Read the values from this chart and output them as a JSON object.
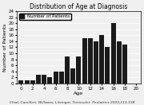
{
  "title": "Distribution of Age at Diagnosis",
  "xlabel": "Age",
  "ylabel": "Number of Patients",
  "citation": "Chial, Camilleri, Williams, Litzinger, Tremoulet. Pediatrics 2003;111:158",
  "ages": [
    0,
    1,
    2,
    3,
    4,
    5,
    6,
    7,
    8,
    9,
    10,
    11,
    12,
    13,
    14,
    15,
    16,
    17,
    18,
    19,
    20
  ],
  "values": [
    1,
    1,
    1,
    3,
    3,
    2,
    4,
    4,
    9,
    5,
    9,
    15,
    15,
    14,
    16,
    12,
    20,
    14,
    13,
    0,
    0
  ],
  "bar_color": "#1a1a1a",
  "bg_color": "#f0f0f0",
  "ylim": [
    0,
    24
  ],
  "yticks": [
    0,
    2,
    4,
    6,
    8,
    10,
    12,
    14,
    16,
    18,
    20,
    22,
    24
  ],
  "xticks": [
    0,
    2,
    4,
    6,
    8,
    10,
    12,
    14,
    16,
    18,
    20
  ],
  "title_fontsize": 5.5,
  "axis_fontsize": 4.5,
  "tick_fontsize": 4.0,
  "legend_fontsize": 4.0,
  "citation_fontsize": 3.2
}
